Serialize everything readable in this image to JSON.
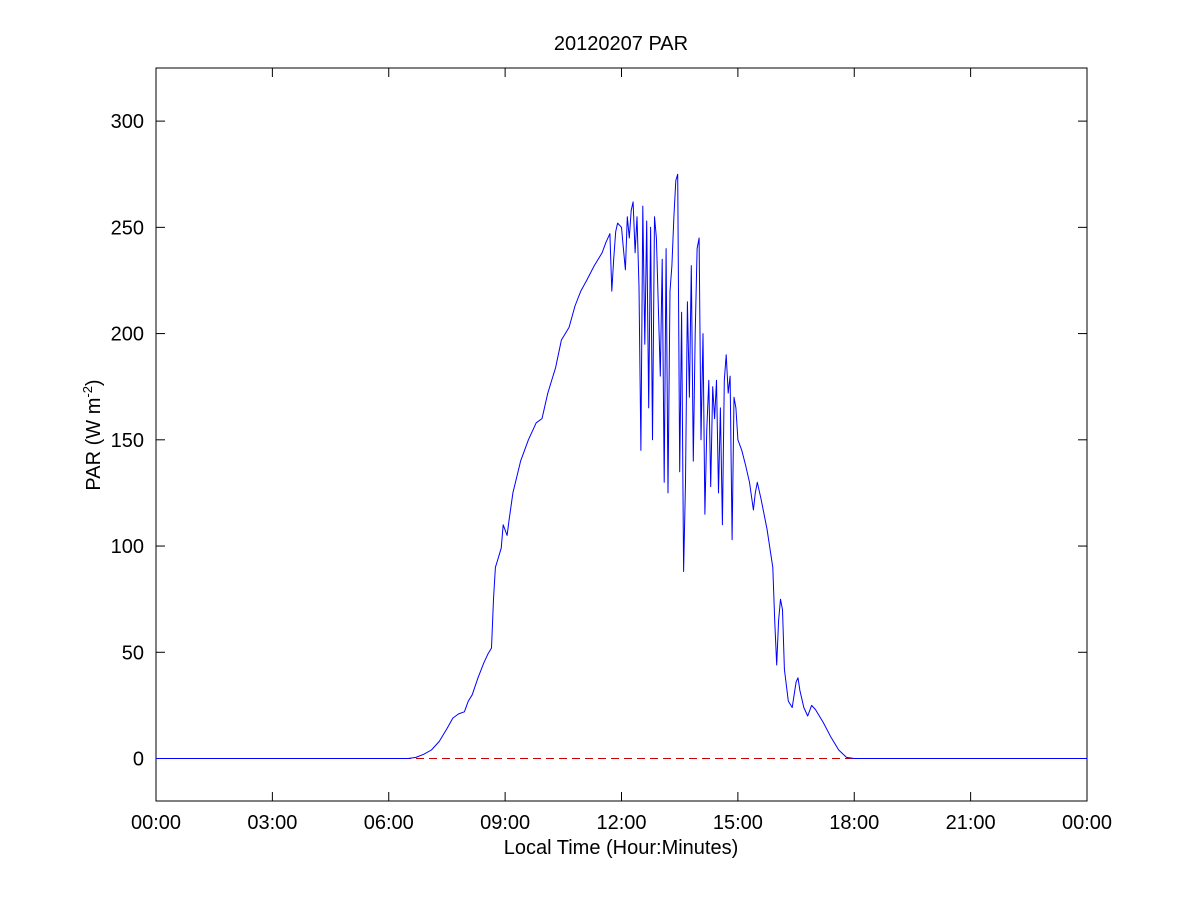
{
  "chart_data": {
    "type": "line",
    "title": "20120207 PAR",
    "xlabel": "Local Time (Hour:Minutes)",
    "ylabel": "PAR (W m",
    "ylabel_exponent": "-2",
    "ylabel_suffix": ")",
    "xlim": [
      0,
      24
    ],
    "ylim": [
      -20,
      325
    ],
    "x_ticks": [
      0,
      3,
      6,
      9,
      12,
      15,
      18,
      21,
      24
    ],
    "x_tick_labels": [
      "00:00",
      "03:00",
      "06:00",
      "09:00",
      "12:00",
      "15:00",
      "18:00",
      "21:00",
      "00:00"
    ],
    "y_ticks": [
      0,
      50,
      100,
      150,
      200,
      250,
      300
    ],
    "y_tick_labels": [
      "0",
      "50",
      "100",
      "150",
      "200",
      "250",
      "300"
    ],
    "grid": false,
    "colors": {
      "series": "#0000ff",
      "reference": "#cc0000",
      "axes": "#000000"
    },
    "reference_line": {
      "y": 0,
      "style": "dashed"
    },
    "series": [
      {
        "values": [
          [
            0,
            0
          ],
          [
            6.5,
            0
          ],
          [
            6.7,
            0.5
          ],
          [
            6.9,
            2
          ],
          [
            7.1,
            4
          ],
          [
            7.3,
            8
          ],
          [
            7.5,
            14
          ],
          [
            7.65,
            19
          ],
          [
            7.8,
            21
          ],
          [
            7.95,
            22
          ],
          [
            8.05,
            27
          ],
          [
            8.15,
            30
          ],
          [
            8.3,
            38
          ],
          [
            8.45,
            45
          ],
          [
            8.55,
            49
          ],
          [
            8.65,
            52
          ],
          [
            8.7,
            75
          ],
          [
            8.75,
            90
          ],
          [
            8.8,
            93
          ],
          [
            8.9,
            99
          ],
          [
            8.95,
            110
          ],
          [
            9.05,
            105
          ],
          [
            9.1,
            112
          ],
          [
            9.2,
            125
          ],
          [
            9.4,
            140
          ],
          [
            9.6,
            150
          ],
          [
            9.8,
            158
          ],
          [
            9.95,
            160
          ],
          [
            10.1,
            172
          ],
          [
            10.3,
            184
          ],
          [
            10.45,
            197
          ],
          [
            10.55,
            200
          ],
          [
            10.65,
            203
          ],
          [
            10.8,
            213
          ],
          [
            10.95,
            220
          ],
          [
            11.1,
            225
          ],
          [
            11.3,
            232
          ],
          [
            11.5,
            238
          ],
          [
            11.6,
            243
          ],
          [
            11.7,
            247
          ],
          [
            11.75,
            220
          ],
          [
            11.8,
            235
          ],
          [
            11.85,
            248
          ],
          [
            11.9,
            252
          ],
          [
            12.0,
            250
          ],
          [
            12.05,
            240
          ],
          [
            12.1,
            230
          ],
          [
            12.15,
            255
          ],
          [
            12.2,
            245
          ],
          [
            12.25,
            258
          ],
          [
            12.3,
            262
          ],
          [
            12.35,
            238
          ],
          [
            12.4,
            255
          ],
          [
            12.45,
            222
          ],
          [
            12.5,
            145
          ],
          [
            12.55,
            260
          ],
          [
            12.6,
            195
          ],
          [
            12.65,
            253
          ],
          [
            12.7,
            165
          ],
          [
            12.75,
            250
          ],
          [
            12.8,
            150
          ],
          [
            12.85,
            255
          ],
          [
            12.9,
            245
          ],
          [
            13.0,
            180
          ],
          [
            13.05,
            235
          ],
          [
            13.1,
            130
          ],
          [
            13.15,
            240
          ],
          [
            13.2,
            125
          ],
          [
            13.25,
            220
          ],
          [
            13.3,
            232
          ],
          [
            13.35,
            255
          ],
          [
            13.4,
            272
          ],
          [
            13.45,
            275
          ],
          [
            13.5,
            135
          ],
          [
            13.55,
            210
          ],
          [
            13.6,
            88
          ],
          [
            13.65,
            130
          ],
          [
            13.7,
            215
          ],
          [
            13.75,
            170
          ],
          [
            13.8,
            232
          ],
          [
            13.85,
            140
          ],
          [
            13.9,
            200
          ],
          [
            13.95,
            240
          ],
          [
            14.0,
            245
          ],
          [
            14.05,
            150
          ],
          [
            14.1,
            200
          ],
          [
            14.15,
            115
          ],
          [
            14.2,
            155
          ],
          [
            14.25,
            178
          ],
          [
            14.3,
            128
          ],
          [
            14.35,
            175
          ],
          [
            14.4,
            160
          ],
          [
            14.45,
            178
          ],
          [
            14.5,
            125
          ],
          [
            14.55,
            165
          ],
          [
            14.6,
            110
          ],
          [
            14.65,
            178
          ],
          [
            14.7,
            190
          ],
          [
            14.75,
            172
          ],
          [
            14.8,
            180
          ],
          [
            14.85,
            103
          ],
          [
            14.9,
            170
          ],
          [
            14.95,
            165
          ],
          [
            15.0,
            150
          ],
          [
            15.1,
            145
          ],
          [
            15.2,
            138
          ],
          [
            15.3,
            130
          ],
          [
            15.4,
            117
          ],
          [
            15.45,
            125
          ],
          [
            15.5,
            130
          ],
          [
            15.6,
            122
          ],
          [
            15.75,
            108
          ],
          [
            15.9,
            90
          ],
          [
            15.95,
            65
          ],
          [
            16.0,
            44
          ],
          [
            16.05,
            65
          ],
          [
            16.1,
            75
          ],
          [
            16.15,
            70
          ],
          [
            16.2,
            42
          ],
          [
            16.3,
            27
          ],
          [
            16.4,
            24
          ],
          [
            16.5,
            36
          ],
          [
            16.55,
            38
          ],
          [
            16.6,
            32
          ],
          [
            16.7,
            24
          ],
          [
            16.8,
            20
          ],
          [
            16.9,
            25
          ],
          [
            17.0,
            23
          ],
          [
            17.2,
            17
          ],
          [
            17.4,
            10
          ],
          [
            17.6,
            4
          ],
          [
            17.8,
            0.5
          ],
          [
            18.0,
            0
          ],
          [
            24,
            0
          ]
        ]
      }
    ]
  }
}
